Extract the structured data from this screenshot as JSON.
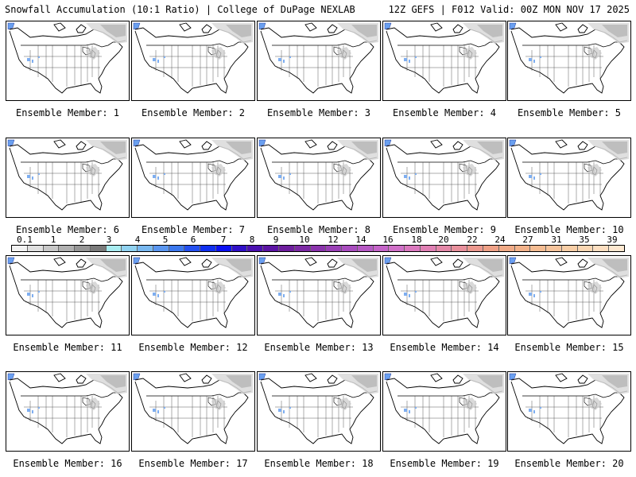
{
  "header": {
    "left_title": "Snowfall Accumulation (10:1 Ratio) | College of DuPage NEXLAB",
    "right_title": "12Z GEFS | F012 Valid: 00Z MON NOV 17 2025"
  },
  "panels": [
    {
      "label": "Ensemble Member: 1"
    },
    {
      "label": "Ensemble Member: 2"
    },
    {
      "label": "Ensemble Member: 3"
    },
    {
      "label": "Ensemble Member: 4"
    },
    {
      "label": "Ensemble Member: 5"
    },
    {
      "label": "Ensemble Member: 6"
    },
    {
      "label": "Ensemble Member: 7"
    },
    {
      "label": "Ensemble Member: 8"
    },
    {
      "label": "Ensemble Member: 9"
    },
    {
      "label": "Ensemble Member: 10"
    },
    {
      "label": "Ensemble Member: 11"
    },
    {
      "label": "Ensemble Member: 12"
    },
    {
      "label": "Ensemble Member: 13"
    },
    {
      "label": "Ensemble Member: 14"
    },
    {
      "label": "Ensemble Member: 15"
    },
    {
      "label": "Ensemble Member: 16"
    },
    {
      "label": "Ensemble Member: 17"
    },
    {
      "label": "Ensemble Member: 18"
    },
    {
      "label": "Ensemble Member: 19"
    },
    {
      "label": "Ensemble Member: 20"
    }
  ],
  "colorbar": {
    "tick_labels": [
      "0.1",
      "1",
      "2",
      "3",
      "4",
      "5",
      "6",
      "7",
      "8",
      "9",
      "10",
      "12",
      "14",
      "16",
      "18",
      "20",
      "22",
      "24",
      "27",
      "31",
      "35",
      "39"
    ],
    "colors": [
      "#f2f2f2",
      "#e0e0e0",
      "#c8c8c8",
      "#b0b0b0",
      "#969696",
      "#7a7a7a",
      "#a8ecf0",
      "#90d2f0",
      "#78b8f0",
      "#5a96f0",
      "#3c78ee",
      "#2450f0",
      "#1030f0",
      "#0a10f2",
      "#3010c8",
      "#4a10b0",
      "#5c14a4",
      "#6e1e9e",
      "#7c2aa4",
      "#8a34ac",
      "#9a40b6",
      "#a84cbe",
      "#b658c4",
      "#c464c8",
      "#d070c8",
      "#da78be",
      "#e080b4",
      "#e488a8",
      "#e8909c",
      "#ec988e",
      "#eea086",
      "#f0aa86",
      "#f2b28a",
      "#f4bc92",
      "#f6c49c",
      "#f8cea6",
      "#fad6b2",
      "#fcdec0",
      "#fee8d0"
    ]
  }
}
